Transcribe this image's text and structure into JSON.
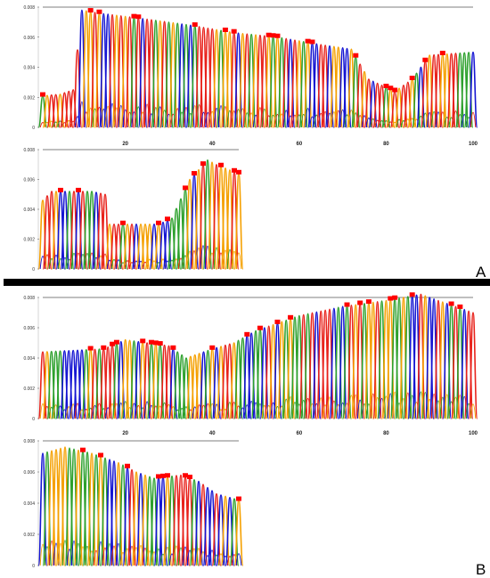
{
  "colors": {
    "A": "#2ca02c",
    "C": "#1414d2",
    "G": "#f5a000",
    "T": "#e8211a",
    "insertion_marker": "#ff0000",
    "divider": "#000000"
  },
  "panel_labels": {
    "A": "A",
    "B": "B"
  },
  "y_ticks": [
    "0",
    "0.002",
    "0.004",
    "0.006",
    "0.008"
  ],
  "x_ticks": [
    "20",
    "40",
    "60",
    "80",
    "100"
  ],
  "chart_data": [
    {
      "type": "line",
      "panel": "A",
      "row": 1,
      "x_range": [
        1,
        100
      ],
      "ylim": [
        0,
        0.008
      ],
      "y_ticks": [
        0,
        0.002,
        0.004,
        0.006,
        0.008
      ],
      "x_ticks": [
        20,
        40,
        60,
        80,
        100
      ],
      "envelope": [
        [
          1,
          0.0021
        ],
        [
          5,
          0.0022
        ],
        [
          8,
          0.0025
        ],
        [
          10,
          0.0078
        ],
        [
          14,
          0.0076
        ],
        [
          25,
          0.0072
        ],
        [
          35,
          0.0068
        ],
        [
          45,
          0.0063
        ],
        [
          55,
          0.006
        ],
        [
          65,
          0.0055
        ],
        [
          72,
          0.0052
        ],
        [
          76,
          0.0032
        ],
        [
          82,
          0.0024
        ],
        [
          86,
          0.0032
        ],
        [
          90,
          0.0048
        ],
        [
          100,
          0.005
        ]
      ]
    },
    {
      "type": "line",
      "panel": "A",
      "row": 2,
      "x_range": [
        1,
        45
      ],
      "ylim": [
        0,
        0.008
      ],
      "y_ticks": [
        0,
        0.002,
        0.004,
        0.006,
        0.008
      ],
      "envelope": [
        [
          1,
          0.0046
        ],
        [
          3,
          0.0052
        ],
        [
          12,
          0.0052
        ],
        [
          15,
          0.005
        ],
        [
          16,
          0.003
        ],
        [
          27,
          0.003
        ],
        [
          30,
          0.0034
        ],
        [
          34,
          0.006
        ],
        [
          38,
          0.0073
        ],
        [
          40,
          0.007
        ],
        [
          45,
          0.0064
        ]
      ]
    },
    {
      "type": "line",
      "panel": "B",
      "row": 1,
      "x_range": [
        1,
        100
      ],
      "ylim": [
        0,
        0.008
      ],
      "y_ticks": [
        0,
        0.002,
        0.004,
        0.006,
        0.008
      ],
      "x_ticks": [
        20,
        40,
        60,
        80,
        100
      ],
      "envelope": [
        [
          1,
          0.0044
        ],
        [
          15,
          0.0046
        ],
        [
          20,
          0.0052
        ],
        [
          30,
          0.0048
        ],
        [
          34,
          0.004
        ],
        [
          40,
          0.0046
        ],
        [
          45,
          0.005
        ],
        [
          50,
          0.0058
        ],
        [
          60,
          0.0068
        ],
        [
          70,
          0.0074
        ],
        [
          80,
          0.0078
        ],
        [
          88,
          0.0082
        ],
        [
          94,
          0.0076
        ],
        [
          100,
          0.007
        ]
      ]
    },
    {
      "type": "line",
      "panel": "B",
      "row": 2,
      "x_range": [
        1,
        45
      ],
      "ylim": [
        0,
        0.008
      ],
      "y_ticks": [
        0,
        0.002,
        0.004,
        0.006,
        0.008
      ],
      "envelope": [
        [
          1,
          0.0072
        ],
        [
          6,
          0.0076
        ],
        [
          12,
          0.0072
        ],
        [
          18,
          0.0066
        ],
        [
          22,
          0.006
        ],
        [
          26,
          0.0056
        ],
        [
          32,
          0.0058
        ],
        [
          36,
          0.0054
        ],
        [
          40,
          0.0046
        ],
        [
          45,
          0.0042
        ]
      ]
    }
  ]
}
